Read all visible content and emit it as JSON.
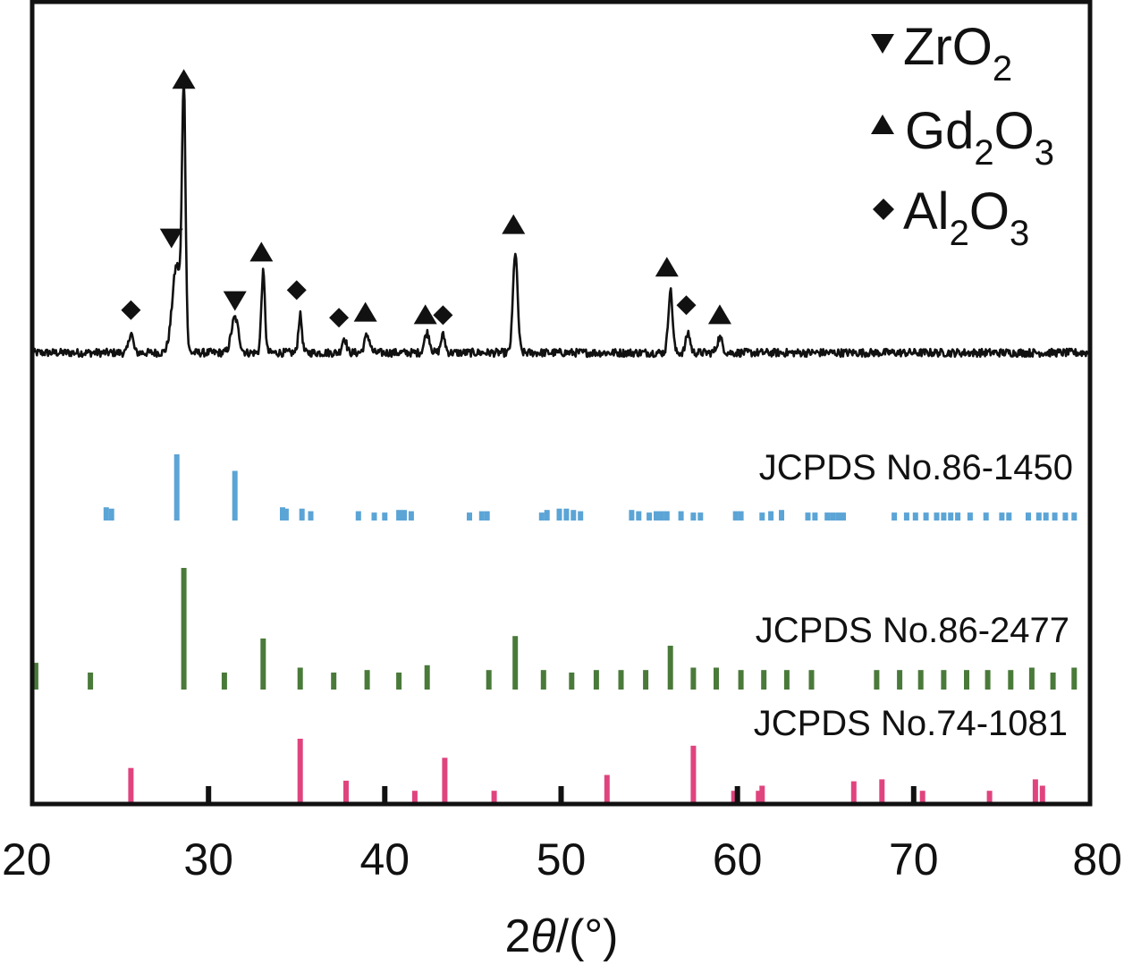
{
  "chart_data": {
    "type": "line",
    "xlabel_prefix": "2",
    "xlabel_theta": "θ",
    "xlabel_suffix": "/(°)",
    "xlim": [
      20,
      80
    ],
    "xticks": [
      20,
      30,
      40,
      50,
      60,
      70,
      80
    ],
    "yaxis": "intensity (unlabeled)",
    "grid": false,
    "legend": {
      "position": "top-right",
      "entries": [
        {
          "marker": "down-triangle",
          "main": "ZrO",
          "sub1": "2",
          "mid": "",
          "sub2": ""
        },
        {
          "marker": "up-triangle",
          "main": "Gd",
          "sub1": "2",
          "mid": "O",
          "sub2": "3"
        },
        {
          "marker": "diamond",
          "main": "Al",
          "sub1": "2",
          "mid": "O",
          "sub2": "3"
        }
      ]
    },
    "pattern": {
      "color": "#111111",
      "baseline": 2,
      "peaks": [
        {
          "x": 25.6,
          "h": 8,
          "w": 0.12
        },
        {
          "x": 28.2,
          "h": 35,
          "w": 0.25
        },
        {
          "x": 28.6,
          "h": 100,
          "w": 0.1
        },
        {
          "x": 31.5,
          "h": 14,
          "w": 0.2
        },
        {
          "x": 33.1,
          "h": 32,
          "w": 0.1
        },
        {
          "x": 35.2,
          "h": 15,
          "w": 0.1
        },
        {
          "x": 37.7,
          "h": 6,
          "w": 0.12
        },
        {
          "x": 39.0,
          "h": 7,
          "w": 0.15
        },
        {
          "x": 42.4,
          "h": 8,
          "w": 0.15
        },
        {
          "x": 43.3,
          "h": 7,
          "w": 0.12
        },
        {
          "x": 47.4,
          "h": 40,
          "w": 0.13
        },
        {
          "x": 56.2,
          "h": 25,
          "w": 0.12
        },
        {
          "x": 57.2,
          "h": 8,
          "w": 0.12
        },
        {
          "x": 59.0,
          "h": 6,
          "w": 0.15
        }
      ]
    },
    "markers": [
      {
        "type": "diamond",
        "x": 25.6,
        "y": 19
      },
      {
        "type": "down",
        "x": 27.9,
        "y": 48
      },
      {
        "type": "up",
        "x": 28.6,
        "y": 111
      },
      {
        "type": "down",
        "x": 31.5,
        "y": 23
      },
      {
        "type": "up",
        "x": 33.0,
        "y": 42
      },
      {
        "type": "diamond",
        "x": 35.0,
        "y": 27
      },
      {
        "type": "diamond",
        "x": 37.4,
        "y": 16
      },
      {
        "type": "up",
        "x": 38.9,
        "y": 18
      },
      {
        "type": "up",
        "x": 42.3,
        "y": 17
      },
      {
        "type": "diamond",
        "x": 43.3,
        "y": 17
      },
      {
        "type": "up",
        "x": 47.3,
        "y": 53
      },
      {
        "type": "up",
        "x": 56.0,
        "y": 36
      },
      {
        "type": "diamond",
        "x": 57.1,
        "y": 21
      },
      {
        "type": "up",
        "x": 59.0,
        "y": 17
      }
    ],
    "references": [
      {
        "name": "JCPDS No.86-1450",
        "color": "#5ba4d6",
        "lines": [
          {
            "x": 24.2,
            "h": 20
          },
          {
            "x": 24.5,
            "h": 18
          },
          {
            "x": 28.2,
            "h": 100
          },
          {
            "x": 31.5,
            "h": 75
          },
          {
            "x": 34.2,
            "h": 20
          },
          {
            "x": 34.4,
            "h": 18
          },
          {
            "x": 35.3,
            "h": 18
          },
          {
            "x": 35.8,
            "h": 14
          },
          {
            "x": 38.5,
            "h": 14
          },
          {
            "x": 39.4,
            "h": 12
          },
          {
            "x": 40.0,
            "h": 12
          },
          {
            "x": 40.8,
            "h": 16
          },
          {
            "x": 41.1,
            "h": 16
          },
          {
            "x": 41.5,
            "h": 14
          },
          {
            "x": 44.8,
            "h": 12
          },
          {
            "x": 45.5,
            "h": 14
          },
          {
            "x": 45.8,
            "h": 14
          },
          {
            "x": 48.9,
            "h": 12
          },
          {
            "x": 49.2,
            "h": 16
          },
          {
            "x": 49.9,
            "h": 18
          },
          {
            "x": 50.3,
            "h": 18
          },
          {
            "x": 50.7,
            "h": 16
          },
          {
            "x": 51.1,
            "h": 14
          },
          {
            "x": 54.0,
            "h": 16
          },
          {
            "x": 54.4,
            "h": 14
          },
          {
            "x": 55.0,
            "h": 12
          },
          {
            "x": 55.4,
            "h": 14
          },
          {
            "x": 55.7,
            "h": 14
          },
          {
            "x": 56.0,
            "h": 14
          },
          {
            "x": 56.8,
            "h": 14
          },
          {
            "x": 57.5,
            "h": 12
          },
          {
            "x": 57.9,
            "h": 12
          },
          {
            "x": 59.9,
            "h": 14
          },
          {
            "x": 60.2,
            "h": 14
          },
          {
            "x": 61.4,
            "h": 12
          },
          {
            "x": 61.9,
            "h": 14
          },
          {
            "x": 62.5,
            "h": 16
          },
          {
            "x": 64.0,
            "h": 12
          },
          {
            "x": 64.4,
            "h": 12
          },
          {
            "x": 65.1,
            "h": 12
          },
          {
            "x": 65.4,
            "h": 12
          },
          {
            "x": 65.7,
            "h": 12
          },
          {
            "x": 66.0,
            "h": 12
          },
          {
            "x": 68.9,
            "h": 12
          },
          {
            "x": 69.6,
            "h": 12
          },
          {
            "x": 70.1,
            "h": 12
          },
          {
            "x": 70.7,
            "h": 12
          },
          {
            "x": 71.3,
            "h": 12
          },
          {
            "x": 71.7,
            "h": 12
          },
          {
            "x": 72.1,
            "h": 12
          },
          {
            "x": 72.5,
            "h": 12
          },
          {
            "x": 73.2,
            "h": 12
          },
          {
            "x": 74.1,
            "h": 12
          },
          {
            "x": 75.0,
            "h": 12
          },
          {
            "x": 75.4,
            "h": 12
          },
          {
            "x": 76.5,
            "h": 12
          },
          {
            "x": 77.1,
            "h": 12
          },
          {
            "x": 77.5,
            "h": 12
          },
          {
            "x": 78.0,
            "h": 12
          },
          {
            "x": 78.6,
            "h": 12
          },
          {
            "x": 79.1,
            "h": 12
          }
        ]
      },
      {
        "name": "JCPDS No.86-2477",
        "color": "#4a7a3a",
        "lines": [
          {
            "x": 20.2,
            "h": 22
          },
          {
            "x": 23.3,
            "h": 14
          },
          {
            "x": 28.6,
            "h": 100
          },
          {
            "x": 30.9,
            "h": 14
          },
          {
            "x": 33.1,
            "h": 42
          },
          {
            "x": 35.2,
            "h": 18
          },
          {
            "x": 37.1,
            "h": 14
          },
          {
            "x": 39.0,
            "h": 16
          },
          {
            "x": 40.8,
            "h": 14
          },
          {
            "x": 42.4,
            "h": 20
          },
          {
            "x": 45.9,
            "h": 16
          },
          {
            "x": 47.4,
            "h": 44
          },
          {
            "x": 49.0,
            "h": 16
          },
          {
            "x": 50.6,
            "h": 14
          },
          {
            "x": 52.0,
            "h": 16
          },
          {
            "x": 53.4,
            "h": 16
          },
          {
            "x": 54.8,
            "h": 16
          },
          {
            "x": 56.2,
            "h": 36
          },
          {
            "x": 57.5,
            "h": 18
          },
          {
            "x": 58.8,
            "h": 18
          },
          {
            "x": 60.2,
            "h": 16
          },
          {
            "x": 61.5,
            "h": 16
          },
          {
            "x": 62.8,
            "h": 16
          },
          {
            "x": 64.2,
            "h": 16
          },
          {
            "x": 67.9,
            "h": 16
          },
          {
            "x": 69.2,
            "h": 16
          },
          {
            "x": 70.4,
            "h": 16
          },
          {
            "x": 71.7,
            "h": 16
          },
          {
            "x": 73.0,
            "h": 16
          },
          {
            "x": 74.2,
            "h": 16
          },
          {
            "x": 75.5,
            "h": 16
          },
          {
            "x": 76.7,
            "h": 18
          },
          {
            "x": 77.9,
            "h": 14
          },
          {
            "x": 79.1,
            "h": 18
          }
        ]
      },
      {
        "name": "JCPDS No.74-1081",
        "color": "#e0447e",
        "lines": [
          {
            "x": 25.6,
            "h": 54
          },
          {
            "x": 35.2,
            "h": 100
          },
          {
            "x": 37.8,
            "h": 34
          },
          {
            "x": 41.7,
            "h": 18
          },
          {
            "x": 43.4,
            "h": 70
          },
          {
            "x": 46.2,
            "h": 18
          },
          {
            "x": 52.6,
            "h": 43
          },
          {
            "x": 57.5,
            "h": 89
          },
          {
            "x": 59.8,
            "h": 18
          },
          {
            "x": 61.2,
            "h": 18
          },
          {
            "x": 61.4,
            "h": 26
          },
          {
            "x": 66.6,
            "h": 33
          },
          {
            "x": 68.2,
            "h": 36
          },
          {
            "x": 70.5,
            "h": 18
          },
          {
            "x": 74.3,
            "h": 18
          },
          {
            "x": 76.9,
            "h": 36
          },
          {
            "x": 77.3,
            "h": 26
          }
        ]
      }
    ]
  }
}
